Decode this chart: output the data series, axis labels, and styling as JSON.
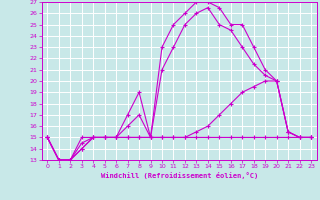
{
  "xlabel": "Windchill (Refroidissement éolien,°C)",
  "xlim": [
    -0.5,
    23.5
  ],
  "ylim": [
    13,
    27
  ],
  "yticks": [
    13,
    14,
    15,
    16,
    17,
    18,
    19,
    20,
    21,
    22,
    23,
    24,
    25,
    26,
    27
  ],
  "xticks": [
    0,
    1,
    2,
    3,
    4,
    5,
    6,
    7,
    8,
    9,
    10,
    11,
    12,
    13,
    14,
    15,
    16,
    17,
    18,
    19,
    20,
    21,
    22,
    23
  ],
  "background_color": "#c8e8e8",
  "grid_color": "#ffffff",
  "line_color": "#cc00cc",
  "lines": [
    {
      "x": [
        0,
        1,
        2,
        3,
        4,
        5,
        6,
        7,
        8,
        9,
        10,
        11,
        12,
        13,
        14,
        15,
        16,
        17,
        18,
        19,
        20,
        21,
        22,
        23
      ],
      "y": [
        15,
        13,
        13,
        15,
        15,
        15,
        15,
        17,
        19,
        15,
        23,
        25,
        26,
        27,
        27,
        26.5,
        25,
        25,
        23,
        21,
        20,
        15.5,
        15,
        15
      ]
    },
    {
      "x": [
        0,
        1,
        2,
        3,
        4,
        5,
        6,
        7,
        8,
        9,
        10,
        11,
        12,
        13,
        14,
        15,
        16,
        17,
        18,
        19,
        20,
        21,
        22,
        23
      ],
      "y": [
        15,
        13,
        13,
        14.5,
        15,
        15,
        15,
        16,
        17,
        15,
        21,
        23,
        25,
        26,
        26.5,
        25,
        24.5,
        23,
        21.5,
        20.5,
        20,
        15.5,
        15,
        15
      ]
    },
    {
      "x": [
        0,
        1,
        2,
        3,
        4,
        5,
        6,
        7,
        8,
        9,
        10,
        11,
        12,
        13,
        14,
        15,
        16,
        17,
        18,
        19,
        20,
        21,
        22,
        23
      ],
      "y": [
        15,
        13,
        13,
        14,
        15,
        15,
        15,
        15,
        15,
        15,
        15,
        15,
        15,
        15,
        15,
        15,
        15,
        15,
        15,
        15,
        15,
        15,
        15,
        15
      ]
    },
    {
      "x": [
        0,
        1,
        2,
        3,
        4,
        5,
        6,
        7,
        8,
        9,
        10,
        11,
        12,
        13,
        14,
        15,
        16,
        17,
        18,
        19,
        20,
        21,
        22,
        23
      ],
      "y": [
        15,
        13,
        13,
        14,
        15,
        15,
        15,
        15,
        15,
        15,
        15,
        15,
        15,
        15.5,
        16,
        17,
        18,
        19,
        19.5,
        20,
        20,
        15.5,
        15,
        15
      ]
    }
  ]
}
